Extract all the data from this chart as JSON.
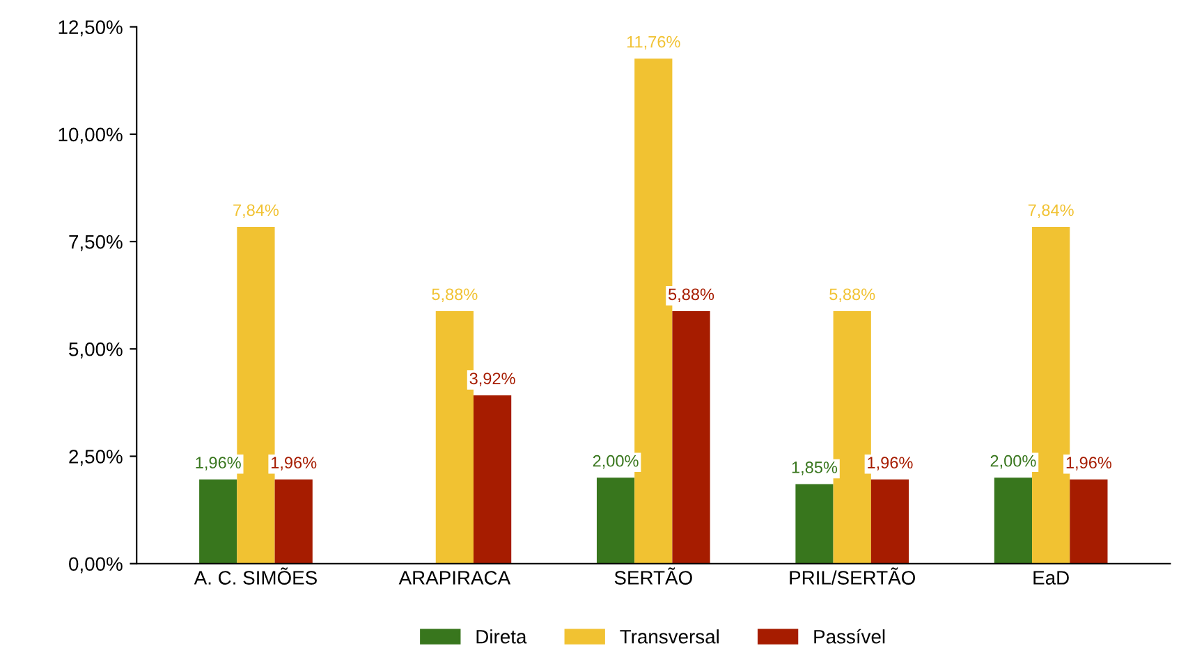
{
  "chart_data": {
    "type": "bar",
    "categories": [
      "A. C. SIMÕES",
      "ARAPIRACA",
      "SERTÃO",
      "PRIL/SERTÃO",
      "EaD"
    ],
    "series": [
      {
        "name": "Direta",
        "color": "#38761d",
        "values": [
          1.96,
          0,
          2.0,
          1.85,
          2.0
        ],
        "value_labels": [
          "1,96%",
          null,
          "2,00%",
          "1,85%",
          "2,00%"
        ]
      },
      {
        "name": "Transversal",
        "color": "#f1c232",
        "values": [
          7.84,
          5.88,
          11.76,
          5.88,
          7.84
        ],
        "value_labels": [
          "7,84%",
          "5,88%",
          "11,76%",
          "5,88%",
          "7,84%"
        ]
      },
      {
        "name": "Passível",
        "color": "#a61c00",
        "values": [
          1.96,
          3.92,
          5.88,
          1.96,
          1.96
        ],
        "value_labels": [
          "1,96%",
          "3,92%",
          "5,88%",
          "1,96%",
          "1,96%"
        ]
      }
    ],
    "ylim": [
      0,
      12.5
    ],
    "yticks": [
      {
        "value": 0,
        "label": "0,00%"
      },
      {
        "value": 2.5,
        "label": "2,50%"
      },
      {
        "value": 5,
        "label": "5,00%"
      },
      {
        "value": 7.5,
        "label": "7,50%"
      },
      {
        "value": 10,
        "label": "10,00%"
      },
      {
        "value": 12.5,
        "label": "12,50%"
      }
    ],
    "grid": false,
    "legend": "bottom"
  }
}
